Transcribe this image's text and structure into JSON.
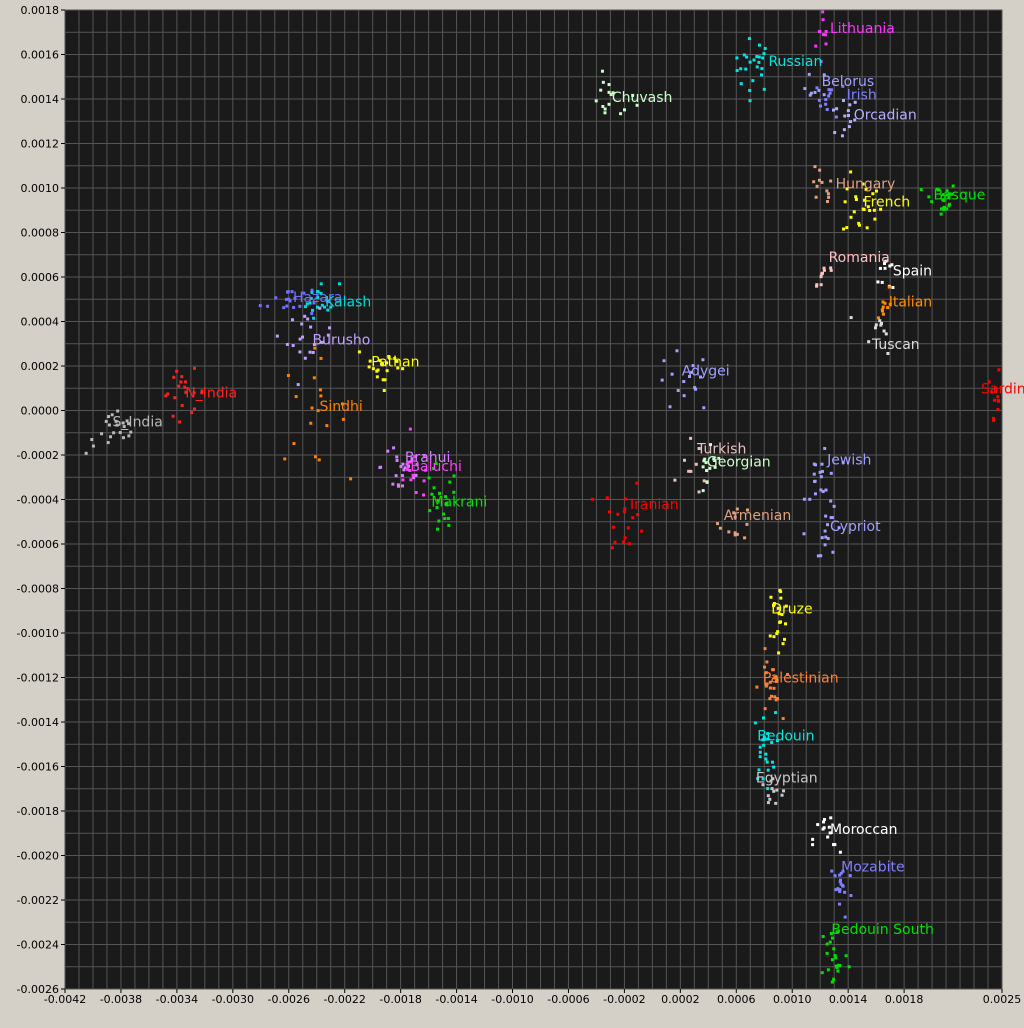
{
  "chart_data": {
    "type": "scatter",
    "title": "",
    "xlabel": "",
    "ylabel": "",
    "xlim": [
      -0.0042,
      0.0025
    ],
    "ylim": [
      -0.0026,
      0.0018
    ],
    "grid": true,
    "background": "#1a1a1a",
    "grid_color": "#555555",
    "x_ticks": [
      {
        "value": -0.0042,
        "label": "-0.0042"
      },
      {
        "value": -0.0038,
        "label": "-0.0038"
      },
      {
        "value": -0.0034,
        "label": "-0.0034"
      },
      {
        "value": -0.003,
        "label": "-0.0030"
      },
      {
        "value": -0.0026,
        "label": "-0.0026"
      },
      {
        "value": -0.0022,
        "label": "-0.0022"
      },
      {
        "value": -0.0018,
        "label": "-0.0018"
      },
      {
        "value": -0.0014,
        "label": "-0.0014"
      },
      {
        "value": -0.001,
        "label": "-0.0010"
      },
      {
        "value": -0.0006,
        "label": "-0.0006"
      },
      {
        "value": -0.0002,
        "label": "-0.0002"
      },
      {
        "value": 0.0002,
        "label": "0.0002"
      },
      {
        "value": 0.0006,
        "label": "0.0006"
      },
      {
        "value": 0.001,
        "label": "0.0010"
      },
      {
        "value": 0.0014,
        "label": "0.0014"
      },
      {
        "value": 0.0018,
        "label": "0.0018"
      },
      {
        "value": 0.0025,
        "label": "0.0025"
      }
    ],
    "y_ticks": [
      {
        "value": 0.0018,
        "label": "0.0018"
      },
      {
        "value": 0.0016,
        "label": "0.0016"
      },
      {
        "value": 0.0014,
        "label": "0.0014"
      },
      {
        "value": 0.0012,
        "label": "0.0012"
      },
      {
        "value": 0.001,
        "label": "0.0010"
      },
      {
        "value": 0.0008,
        "label": "0.0008"
      },
      {
        "value": 0.0006,
        "label": "0.0006"
      },
      {
        "value": 0.0004,
        "label": "0.0004"
      },
      {
        "value": 0.0002,
        "label": "0.0002"
      },
      {
        "value": 0.0,
        "label": "0.0000"
      },
      {
        "value": -0.0002,
        "label": "-0.0002"
      },
      {
        "value": -0.0004,
        "label": "-0.0004"
      },
      {
        "value": -0.0006,
        "label": "-0.0006"
      },
      {
        "value": -0.0008,
        "label": "-0.0008"
      },
      {
        "value": -0.001,
        "label": "-0.0010"
      },
      {
        "value": -0.0012,
        "label": "-0.0012"
      },
      {
        "value": -0.0014,
        "label": "-0.0014"
      },
      {
        "value": -0.0016,
        "label": "-0.0016"
      },
      {
        "value": -0.0018,
        "label": "-0.0018"
      },
      {
        "value": -0.002,
        "label": "-0.0020"
      },
      {
        "value": -0.0022,
        "label": "-0.0022"
      },
      {
        "value": -0.0024,
        "label": "-0.0024"
      },
      {
        "value": -0.0026,
        "label": "-0.0026"
      }
    ],
    "groups": [
      {
        "name": "Lithuania",
        "color": "#ff33ff",
        "x": 0.00123,
        "y": 0.00168,
        "sx": 3e-05,
        "sy": 8e-05,
        "n": 10,
        "label_x": 0.00127,
        "label_y": 0.00172
      },
      {
        "name": "Russian",
        "color": "#00e5e5",
        "x": 0.00072,
        "y": 0.00155,
        "sx": 7e-05,
        "sy": 6e-05,
        "n": 24,
        "label_x": 0.00083,
        "label_y": 0.00157
      },
      {
        "name": "Belorus",
        "color": "#a0a0ff",
        "x": 0.00117,
        "y": 0.00145,
        "sx": 4e-05,
        "sy": 4e-05,
        "n": 8,
        "label_x": 0.00121,
        "label_y": 0.00148
      },
      {
        "name": "Irish",
        "color": "#8080ff",
        "x": 0.00128,
        "y": 0.0014,
        "sx": 5e-05,
        "sy": 4e-05,
        "n": 12,
        "label_x": 0.00139,
        "label_y": 0.00142
      },
      {
        "name": "Orcadian",
        "color": "#b0b0ff",
        "x": 0.00136,
        "y": 0.00131,
        "sx": 6e-05,
        "sy": 5e-05,
        "n": 14,
        "label_x": 0.00144,
        "label_y": 0.00133
      },
      {
        "name": "Chuvash",
        "color": "#c8ffc8",
        "x": -0.0003,
        "y": 0.0014,
        "sx": 9e-05,
        "sy": 5e-05,
        "n": 16,
        "label_x": -0.00029,
        "label_y": 0.00141
      },
      {
        "name": "Hungary",
        "color": "#e0a080",
        "x": 0.0012,
        "y": 0.00098,
        "sx": 5e-05,
        "sy": 6e-05,
        "n": 12,
        "label_x": 0.00131,
        "label_y": 0.00102
      },
      {
        "name": "French",
        "color": "#ffff00",
        "x": 0.0015,
        "y": 0.00092,
        "sx": 7e-05,
        "sy": 7e-05,
        "n": 24,
        "label_x": 0.00151,
        "label_y": 0.00094
      },
      {
        "name": "Basque",
        "color": "#00e000",
        "x": 0.00206,
        "y": 0.00095,
        "sx": 6e-05,
        "sy": 4e-05,
        "n": 22,
        "label_x": 0.00201,
        "label_y": 0.00097
      },
      {
        "name": "Romania",
        "color": "#ffc0c0",
        "x": 0.00122,
        "y": 0.00062,
        "sx": 5e-05,
        "sy": 5e-05,
        "n": 10,
        "label_x": 0.00126,
        "label_y": 0.00069
      },
      {
        "name": "Spain",
        "color": "#ffffff",
        "x": 0.0017,
        "y": 0.00062,
        "sx": 4e-05,
        "sy": 5e-05,
        "n": 10,
        "label_x": 0.00172,
        "label_y": 0.00063
      },
      {
        "name": "Italian",
        "color": "#ff8c00",
        "x": 0.00165,
        "y": 0.00048,
        "sx": 3e-05,
        "sy": 5e-05,
        "n": 10,
        "label_x": 0.00169,
        "label_y": 0.00049
      },
      {
        "name": "Tuscan",
        "color": "#dddddd",
        "x": 0.00163,
        "y": 0.00036,
        "sx": 6e-05,
        "sy": 5e-05,
        "n": 10,
        "label_x": 0.00157,
        "label_y": 0.0003
      },
      {
        "name": "Sardinian",
        "color": "#ff0000",
        "x": 0.00248,
        "y": 7e-05,
        "sx": 4e-05,
        "sy": 5e-05,
        "n": 24,
        "label_x": 0.00235,
        "label_y": 0.0001
      },
      {
        "name": "Hazara",
        "color": "#7070ff",
        "x": -0.0026,
        "y": 0.0005,
        "sx": 0.0001,
        "sy": 4e-05,
        "n": 20,
        "label_x": -0.00257,
        "label_y": 0.00051
      },
      {
        "name": "Kalash",
        "color": "#00d8d8",
        "x": -0.00238,
        "y": 0.0005,
        "sx": 7e-05,
        "sy": 4e-05,
        "n": 18,
        "label_x": -0.00234,
        "label_y": 0.00049
      },
      {
        "name": "Burusho",
        "color": "#c0a0ff",
        "x": -0.00245,
        "y": 0.00032,
        "sx": 8e-05,
        "sy": 6e-05,
        "n": 20,
        "label_x": -0.00243,
        "label_y": 0.00032
      },
      {
        "name": "Pathan",
        "color": "#ffff00",
        "x": -0.00192,
        "y": 0.0002,
        "sx": 0.0001,
        "sy": 5e-05,
        "n": 20,
        "label_x": -0.00201,
        "label_y": 0.00022
      },
      {
        "name": "N_India",
        "color": "#ff2020",
        "x": -0.00335,
        "y": 8e-05,
        "sx": 8e-05,
        "sy": 5e-05,
        "n": 20,
        "label_x": -0.00334,
        "label_y": 8e-05
      },
      {
        "name": "Sindhi",
        "color": "#ff7f00",
        "x": -0.00245,
        "y": 0.0,
        "sx": 0.00013,
        "sy": 0.00012,
        "n": 18,
        "label_x": -0.00238,
        "label_y": 2e-05
      },
      {
        "name": "S_India",
        "color": "#b8b8b8",
        "x": -0.00385,
        "y": -0.0001,
        "sx": 0.0001,
        "sy": 5e-05,
        "n": 22,
        "label_x": -0.00386,
        "label_y": -5e-05
      },
      {
        "name": "Brahui",
        "color": "#d080ff",
        "x": -0.00178,
        "y": -0.00025,
        "sx": 8e-05,
        "sy": 8e-05,
        "n": 22,
        "label_x": -0.00177,
        "label_y": -0.00021
      },
      {
        "name": "Baluchi",
        "color": "#ff40ff",
        "x": -0.0017,
        "y": -0.00028,
        "sx": 7e-05,
        "sy": 6e-05,
        "n": 14,
        "label_x": -0.00173,
        "label_y": -0.00025
      },
      {
        "name": "Makrani",
        "color": "#00e000",
        "x": -0.00153,
        "y": -0.00045,
        "sx": 7e-05,
        "sy": 0.0001,
        "n": 20,
        "label_x": -0.00158,
        "label_y": -0.00041
      },
      {
        "name": "Adygei",
        "color": "#a0a0ff",
        "x": 0.00022,
        "y": 0.00012,
        "sx": 0.0001,
        "sy": 7e-05,
        "n": 16,
        "label_x": 0.00021,
        "label_y": 0.00018
      },
      {
        "name": "Turkish",
        "color": "#e8c0c0",
        "x": 0.00032,
        "y": -0.00025,
        "sx": 6e-05,
        "sy": 7e-05,
        "n": 10,
        "label_x": 0.00032,
        "label_y": -0.00017
      },
      {
        "name": "Georgian",
        "color": "#c8ffc8",
        "x": 0.0004,
        "y": -0.0003,
        "sx": 5e-05,
        "sy": 6e-05,
        "n": 14,
        "label_x": 0.00039,
        "label_y": -0.00023
      },
      {
        "name": "Jewish",
        "color": "#a0a0ff",
        "x": 0.00122,
        "y": -0.0003,
        "sx": 6e-05,
        "sy": 0.0001,
        "n": 20,
        "label_x": 0.00125,
        "label_y": -0.00022
      },
      {
        "name": "Iranian",
        "color": "#ff0000",
        "x": -0.0002,
        "y": -0.00048,
        "sx": 8e-05,
        "sy": 8e-05,
        "n": 18,
        "label_x": -0.00016,
        "label_y": -0.00042
      },
      {
        "name": "Armenian",
        "color": "#e0a080",
        "x": 0.0006,
        "y": -0.0005,
        "sx": 6e-05,
        "sy": 4e-05,
        "n": 12,
        "label_x": 0.00051,
        "label_y": -0.00047
      },
      {
        "name": "Cypriot",
        "color": "#a0a0ff",
        "x": 0.00127,
        "y": -0.00055,
        "sx": 5e-05,
        "sy": 5e-05,
        "n": 14,
        "label_x": 0.00127,
        "label_y": -0.00052
      },
      {
        "name": "Druze",
        "color": "#ffff00",
        "x": 0.0009,
        "y": -0.00092,
        "sx": 4e-05,
        "sy": 7e-05,
        "n": 22,
        "label_x": 0.00085,
        "label_y": -0.00089
      },
      {
        "name": "Palestinian",
        "color": "#ff8030",
        "x": 0.00084,
        "y": -0.00125,
        "sx": 4e-05,
        "sy": 8e-05,
        "n": 24,
        "label_x": 0.00079,
        "label_y": -0.0012
      },
      {
        "name": "Bedouin",
        "color": "#00e5e5",
        "x": 0.0008,
        "y": -0.00152,
        "sx": 4e-05,
        "sy": 8e-05,
        "n": 24,
        "label_x": 0.00075,
        "label_y": -0.00146
      },
      {
        "name": "Egyptian",
        "color": "#c8c8c8",
        "x": 0.00085,
        "y": -0.00172,
        "sx": 6e-05,
        "sy": 4e-05,
        "n": 12,
        "label_x": 0.00074,
        "label_y": -0.00165
      },
      {
        "name": "Moroccan",
        "color": "#ffffff",
        "x": 0.00125,
        "y": -0.00193,
        "sx": 5e-05,
        "sy": 6e-05,
        "n": 14,
        "label_x": 0.00127,
        "label_y": -0.00188
      },
      {
        "name": "Mozabite",
        "color": "#8080ff",
        "x": 0.00135,
        "y": -0.00215,
        "sx": 4e-05,
        "sy": 7e-05,
        "n": 20,
        "label_x": 0.00135,
        "label_y": -0.00205
      },
      {
        "name": "Bedouin South",
        "color": "#00e000",
        "x": 0.0013,
        "y": -0.00245,
        "sx": 5e-05,
        "sy": 8e-05,
        "n": 22,
        "label_x": 0.00128,
        "label_y": -0.00233
      }
    ]
  }
}
